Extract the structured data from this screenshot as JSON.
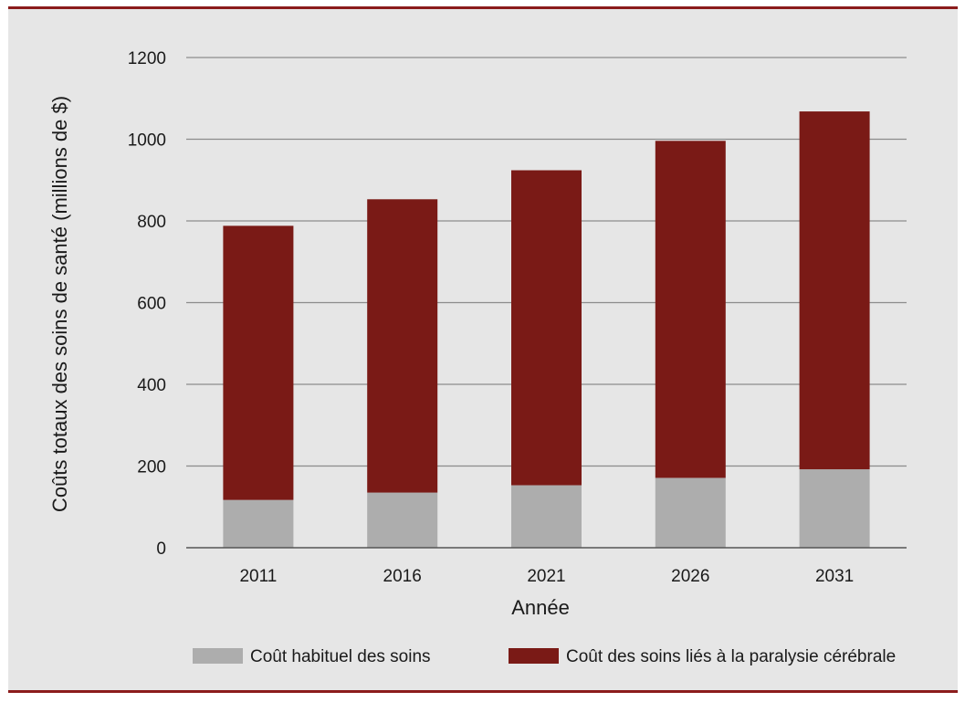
{
  "chart_data": {
    "type": "bar",
    "stacked": true,
    "categories": [
      "2011",
      "2016",
      "2021",
      "2026",
      "2031"
    ],
    "series": [
      {
        "name": "Coût habituel des soins",
        "values": [
          117,
          135,
          153,
          171,
          192
        ],
        "color": "#adadad"
      },
      {
        "name": "Coût des soins liés à la paralysie cérébrale",
        "values": [
          671,
          718,
          771,
          825,
          876
        ],
        "color": "#7a1a16"
      }
    ],
    "xlabel": "Année",
    "ylabel": "Coûts totaux des soins de santé (millions de $)",
    "ylim": [
      0,
      1200
    ],
    "yticks": [
      "0",
      "200",
      "400",
      "600",
      "800",
      "1000",
      "1200"
    ],
    "grid": true,
    "legend_position": "bottom"
  },
  "colors": {
    "frame_border": "#8b1c1c",
    "background": "#e6e6e6",
    "gridline": "#8c8c8c"
  }
}
